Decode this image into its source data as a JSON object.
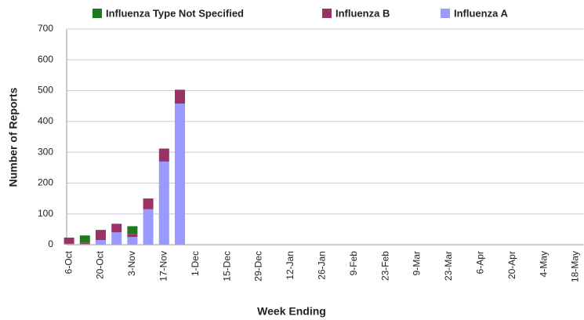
{
  "chart_data": {
    "type": "stacked_bar",
    "xlabel": "Week Ending",
    "ylabel": "Number of Reports",
    "categories": [
      "6-Oct",
      null,
      "20-Oct",
      null,
      "3-Nov",
      null,
      "17-Nov",
      null,
      "1-Dec",
      null,
      "15-Dec",
      null,
      "29-Dec",
      null,
      "12-Jan",
      null,
      "26-Jan",
      null,
      "9-Feb",
      null,
      "23-Feb",
      null,
      "9-Mar",
      null,
      "23-Mar",
      null,
      "6-Apr",
      null,
      "20-Apr",
      null,
      "4-May",
      null,
      "18-May"
    ],
    "series": [
      {
        "name": "Influenza A",
        "color": "#9999ff",
        "values": [
          3,
          2,
          15,
          40,
          25,
          115,
          270,
          458,
          0,
          0,
          0,
          0,
          0,
          0,
          0,
          0,
          0,
          0,
          0,
          0,
          0,
          0,
          0,
          0,
          0,
          0,
          0,
          0,
          0,
          0,
          0,
          0,
          0
        ]
      },
      {
        "name": "Influenza B",
        "color": "#993366",
        "values": [
          20,
          5,
          33,
          28,
          10,
          35,
          42,
          45,
          0,
          0,
          0,
          0,
          0,
          0,
          0,
          0,
          0,
          0,
          0,
          0,
          0,
          0,
          0,
          0,
          0,
          0,
          0,
          0,
          0,
          0,
          0,
          0,
          0
        ]
      },
      {
        "name": "Influenza Type Not Specified",
        "color": "#1f7a1f",
        "values": [
          0,
          23,
          0,
          0,
          25,
          0,
          0,
          0,
          0,
          0,
          0,
          0,
          0,
          0,
          0,
          0,
          0,
          0,
          0,
          0,
          0,
          0,
          0,
          0,
          0,
          0,
          0,
          0,
          0,
          0,
          0,
          0,
          0
        ]
      }
    ],
    "ylim": [
      0,
      700
    ],
    "yticks": [
      0,
      100,
      200,
      300,
      400,
      500,
      600,
      700
    ],
    "grid": true,
    "legend": "top"
  }
}
